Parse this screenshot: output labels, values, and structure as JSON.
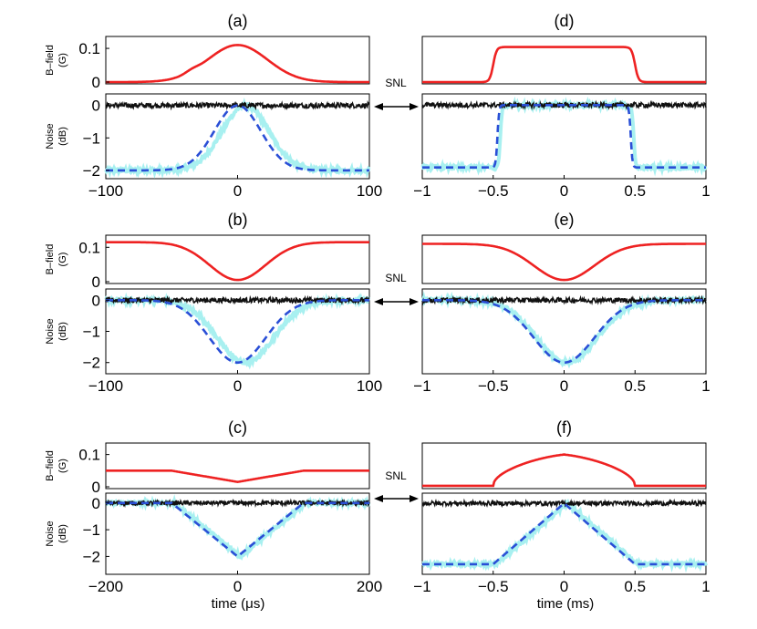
{
  "colors": {
    "bfield": "#ee2222",
    "noise_measured": "#111111",
    "noise_light": "#a8f0f0",
    "noise_theory": "#2a4fd6",
    "axes": "#000000"
  },
  "snl_label": "SNL",
  "bfield_ylabel": [
    "B–field",
    "(G)"
  ],
  "noise_ylabel": [
    "Noise",
    "(dB)"
  ],
  "xlabels": {
    "left": "time (μs)",
    "right": "time (ms)"
  },
  "chart_data": [
    {
      "type": "line",
      "panel": "a",
      "title": "(a)",
      "x_range": [
        -100,
        100
      ],
      "x_ticks": [
        "-100",
        "0",
        "100"
      ],
      "bfield": {
        "ylim": [
          0,
          0.13
        ],
        "yticks": [
          "0",
          "0.1"
        ],
        "shape": "bump",
        "peak_G": 0.11,
        "values_G_at": [
          [
            -100,
            0
          ],
          [
            -50,
            0.005
          ],
          [
            -40,
            0.03
          ],
          [
            -20,
            0.06
          ],
          [
            0,
            0.11
          ],
          [
            50,
            0.02
          ],
          [
            100,
            0
          ]
        ]
      },
      "noise": {
        "ylim": [
          -2.2,
          0.3
        ],
        "yticks": [
          "0",
          "-1",
          "-2"
        ],
        "measured_dB": 0,
        "theory_dB": [
          [
            -100,
            -2
          ],
          [
            -50,
            -2
          ],
          [
            0,
            0
          ],
          [
            50,
            -2
          ],
          [
            100,
            -2
          ]
        ]
      }
    },
    {
      "type": "line",
      "panel": "b",
      "title": "(b)",
      "x_range": [
        -100,
        100
      ],
      "x_ticks": [
        "-100",
        "0",
        "100"
      ],
      "bfield": {
        "ylim": [
          0,
          0.13
        ],
        "yticks": [
          "0",
          "0.1"
        ],
        "shape": "dip",
        "baseline_G": 0.115,
        "min_G": 0.005
      },
      "noise": {
        "ylim": [
          -2.3,
          0.3
        ],
        "yticks": [
          "0",
          "-1",
          "-2"
        ],
        "measured_dB": 0,
        "theory_min_dB": -2
      }
    },
    {
      "type": "line",
      "panel": "c",
      "title": "(c)",
      "x_range": [
        -200,
        200
      ],
      "x_ticks": [
        "-200",
        "0",
        "200"
      ],
      "bfield": {
        "ylim": [
          0,
          0.13
        ],
        "yticks": [
          "0",
          "0.1"
        ],
        "shape": "v-dip",
        "baseline_G": 0.05,
        "min_G": 0.015
      },
      "noise": {
        "ylim": [
          -2.6,
          0.3
        ],
        "yticks": [
          "0",
          "-1",
          "-2"
        ],
        "measured_dB": 0,
        "theory_dB": [
          [
            -200,
            0
          ],
          [
            -100,
            0
          ],
          [
            0,
            -2
          ],
          [
            100,
            0
          ],
          [
            200,
            0
          ]
        ]
      }
    },
    {
      "type": "line",
      "panel": "d",
      "title": "(d)",
      "x_range": [
        -1,
        1
      ],
      "x_ticks": [
        "-1",
        "-0.5",
        "0",
        "0.5",
        "1"
      ],
      "bfield": {
        "ylim": [
          0,
          0.1
        ],
        "yticks": [],
        "shape": "plateau",
        "plateau_G": 0.08,
        "edges_ms": [
          -0.5,
          0.5
        ]
      },
      "noise": {
        "ylim": [
          -2.3,
          0.3
        ],
        "yticks": [],
        "measured_dB": 0,
        "theory_dB": [
          [
            -1,
            -2
          ],
          [
            -0.5,
            -2
          ],
          [
            -0.45,
            0
          ],
          [
            0.45,
            0
          ],
          [
            0.5,
            -2
          ],
          [
            1,
            -2
          ]
        ]
      }
    },
    {
      "type": "line",
      "panel": "e",
      "title": "(e)",
      "x_range": [
        -1,
        1
      ],
      "x_ticks": [
        "-1",
        "-0.5",
        "0",
        "0.5",
        "1"
      ],
      "bfield": {
        "ylim": [
          0,
          0.13
        ],
        "yticks": [],
        "shape": "dip",
        "baseline_G": 0.11,
        "min_G": 0.005
      },
      "noise": {
        "ylim": [
          -2.3,
          0.3
        ],
        "yticks": [],
        "measured_dB": 0,
        "theory_min_dB": -2
      }
    },
    {
      "type": "line",
      "panel": "f",
      "title": "(f)",
      "x_range": [
        -1,
        1
      ],
      "x_ticks": [
        "-1",
        "-0.5",
        "0",
        "0.5",
        "1"
      ],
      "bfield": {
        "ylim": [
          0,
          0.13
        ],
        "yticks": [],
        "shape": "tent",
        "baseline_G": 0.003,
        "peak_G": 0.1
      },
      "noise": {
        "ylim": [
          -2.5,
          0.3
        ],
        "yticks": [],
        "measured_dB": 0,
        "theory_dB": [
          [
            -1,
            -2.2
          ],
          [
            -0.5,
            -2.2
          ],
          [
            0,
            0
          ],
          [
            0.5,
            -2.2
          ],
          [
            1,
            -2.2
          ]
        ]
      }
    }
  ]
}
